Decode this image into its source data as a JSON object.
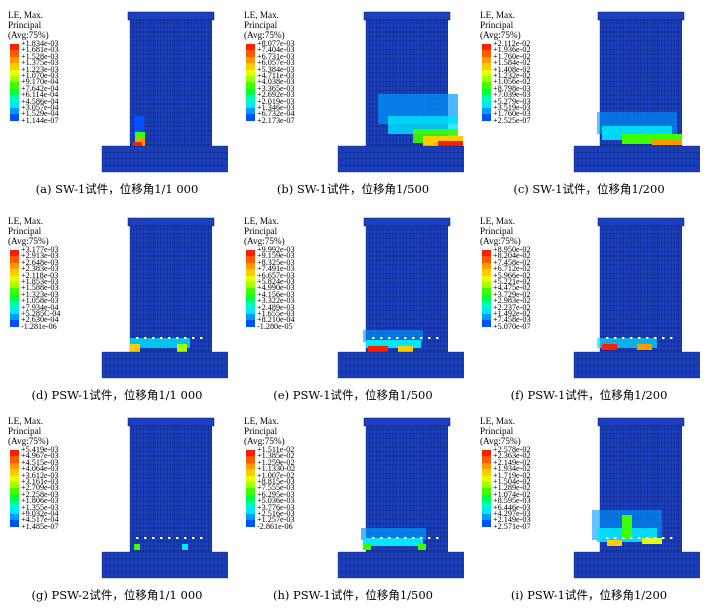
{
  "legend_header": [
    "LE, Max.",
    "Principal",
    "(Avg:75%)"
  ],
  "palette": [
    "#ff1e00",
    "#ff5a00",
    "#ff9900",
    "#ffcc00",
    "#e6ff00",
    "#a5ff00",
    "#3cff00",
    "#00ff40",
    "#00ffb0",
    "#00e6ff",
    "#0099ff",
    "#0050ff",
    "#1a1aee"
  ],
  "colors": {
    "body": "#1b3fbf",
    "mesh": "#0d1f66",
    "text": "#000000"
  },
  "panels": [
    {
      "caption": "(a) SW-1试件，位移角1/1 000",
      "values": [
        "+1.834e-03",
        "+1.681e-03",
        "+1.528e-03",
        "+1.375e-03",
        "+1.223e-03",
        "+1.070e-03",
        "+9.170e-04",
        "+7.642e-04",
        "+6.114e-04",
        "+4.586e-04",
        "+3.057e-04",
        "+1.529e-04",
        "+1.144e-07"
      ]
    },
    {
      "caption": "(b) SW-1试件，位移角1/500",
      "values": [
        "+8.077e-03",
        "+7.404e-03",
        "+6.731e-03",
        "+6.057e-03",
        "+5.384e-03",
        "+4.711e-03",
        "+4.038e-03",
        "+3.365e-03",
        "+2.692e-03",
        "+2.019e-03",
        "+1.346e-03",
        "+6.732e-04",
        "+2.173e-07"
      ]
    },
    {
      "caption": "(c) SW-1试件，位移角1/200",
      "values": [
        "+2.112e-02",
        "+1.936e-02",
        "+1.760e-02",
        "+1.584e-02",
        "+1.408e-02",
        "+1.232e-02",
        "+1.056e-02",
        "+8.798e-03",
        "+7.039e-03",
        "+5.279e-03",
        "+3.519e-03",
        "+1.760e-03",
        "+2.525e-07"
      ]
    },
    {
      "caption": "(d) PSW-1试件，位移角1/1 000",
      "values": [
        "+3.177e-03",
        "+2.913e-03",
        "+2.648e-03",
        "+2.383e-03",
        "+2.118e-03",
        "+1.853e-03",
        "+1.588e-03",
        "+1.323e-03",
        "+1.058e-03",
        "+7.934e-04",
        "+5.285C-04",
        "+2.630e-04",
        "-1.281e-06"
      ]
    },
    {
      "caption": "(e) PSW-1试件，位移角1/500",
      "values": [
        "+9.992e-03",
        "+9.159e-03",
        "+8.325e-03",
        "+7.491e-03",
        "+6.657e-03",
        "+5.824e-03",
        "+4.990e-03",
        "+4.156e-03",
        "+3.322e-03",
        "+2.489e-03",
        "+1.655e-03",
        "+8.210e-04",
        "-1.280e-05"
      ]
    },
    {
      "caption": "(f) PSW-1试件，位移角1/200",
      "values": [
        "+8.950e-02",
        "+8.204e-02",
        "+7.458e-02",
        "+6.712e-02",
        "+5.966e-02",
        "+5.221e-02",
        "+4.475e-02",
        "+3.729e-02",
        "+2.983e-02",
        "+2.237e-02",
        "+1.492e-02",
        "+7.458e-03",
        "+5.070e-07"
      ]
    },
    {
      "caption": "(g) PSW-2试件，位移角1/1 000",
      "values": [
        "+5.419e-03",
        "+4.967e-03",
        "+4.515e-03",
        "+4.064e-03",
        "+3.612e-03",
        "+3.161e-03",
        "+2.709e-03",
        "+2.258e-03",
        "+1.806e-03",
        "+1.355e-03",
        "+9.032e-04",
        "+4.517e-04",
        "+1.485e-07"
      ]
    },
    {
      "caption": "(h) PSW-1试件，位移角1/500",
      "values": [
        "+1.511e-02",
        "+1.385e-02",
        "+1.259e-02",
        "+1.1330-02",
        "+1.007e-02",
        "+8.815e-03",
        "+7.555e-03",
        "+6.295e-03",
        "+5.036e-03",
        "+3.776e-03",
        "+2.516e-03",
        "+1.257e-03",
        "-2.861e-06"
      ]
    },
    {
      "caption": "(i) PSW-1试件，位移角1/200",
      "values": [
        "+2.578e-02",
        "+2.363e-02",
        "+2.149e-02",
        "+1.934e-02",
        "+1.719e-02",
        "+1.504e-02",
        "+1.289e-02",
        "+1.074e-02",
        "+8.595e-03",
        "+6.446e-03",
        "+4.297e-03",
        "+2.149e-03",
        "+2.571e-07"
      ]
    }
  ]
}
